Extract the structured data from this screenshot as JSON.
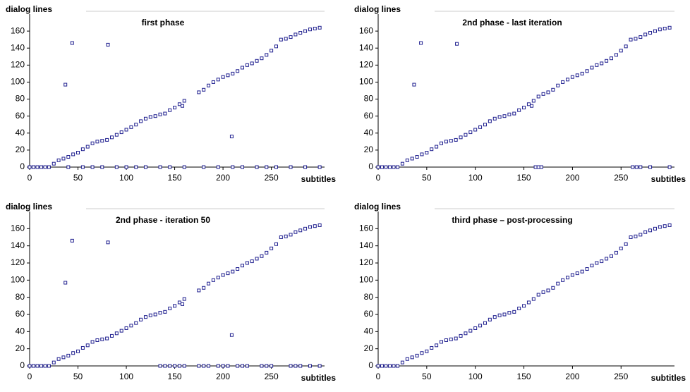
{
  "chart_data": [
    {
      "type": "scatter",
      "title": "first phase",
      "x_label": "subtitles",
      "y_label": "dialog lines",
      "color": "#1f1f8f",
      "xlim": [
        0,
        305
      ],
      "ylim": [
        0,
        180
      ],
      "xticks": [
        0,
        50,
        100,
        150,
        200,
        250
      ],
      "yticks": [
        0,
        20,
        40,
        60,
        80,
        100,
        120,
        140,
        160
      ],
      "x": [
        0,
        4,
        8,
        12,
        16,
        40,
        55,
        65,
        75,
        90,
        100,
        110,
        120,
        135,
        145,
        160,
        180,
        195,
        210,
        220,
        235,
        245,
        255,
        270,
        285,
        300,
        37,
        44,
        81,
        158,
        209,
        20,
        25,
        30,
        35,
        40,
        45,
        50,
        55,
        60,
        65,
        70,
        75,
        80,
        85,
        90,
        95,
        100,
        105,
        110,
        115,
        120,
        125,
        130,
        135,
        140,
        145,
        150,
        155,
        160,
        175,
        180,
        185,
        190,
        195,
        200,
        205,
        210,
        215,
        220,
        225,
        230,
        235,
        240,
        245,
        250,
        255,
        260,
        265,
        270,
        275,
        280,
        285,
        290,
        295,
        300
      ],
      "y": [
        0,
        0,
        0,
        0,
        0,
        0,
        0,
        0,
        0,
        0,
        0,
        0,
        0,
        0,
        0,
        0,
        0,
        0,
        0,
        0,
        0,
        0,
        0,
        0,
        0,
        0,
        97,
        146,
        144,
        72,
        36,
        0,
        4,
        8,
        10,
        12,
        15,
        17,
        21,
        24,
        28,
        30,
        31,
        32,
        35,
        38,
        41,
        44,
        47,
        50,
        54,
        57,
        59,
        60,
        62,
        63,
        67,
        70,
        74,
        78,
        88,
        91,
        96,
        100,
        103,
        106,
        108,
        110,
        113,
        117,
        120,
        122,
        125,
        128,
        132,
        137,
        142,
        150,
        151,
        153,
        156,
        158,
        160,
        162,
        163,
        164
      ]
    },
    {
      "type": "scatter",
      "title": "2nd phase - last iteration",
      "x_label": "subtitles",
      "y_label": "dialog lines",
      "color": "#1f1f8f",
      "xlim": [
        0,
        305
      ],
      "ylim": [
        0,
        180
      ],
      "xticks": [
        0,
        50,
        100,
        150,
        200,
        250
      ],
      "yticks": [
        0,
        20,
        40,
        60,
        80,
        100,
        120,
        140,
        160
      ],
      "x": [
        0,
        4,
        8,
        12,
        16,
        162,
        165,
        168,
        262,
        266,
        270,
        280,
        300,
        37,
        44,
        81,
        158,
        20,
        25,
        30,
        35,
        40,
        45,
        50,
        55,
        60,
        65,
        70,
        75,
        80,
        85,
        90,
        95,
        100,
        105,
        110,
        115,
        120,
        125,
        130,
        135,
        140,
        145,
        150,
        155,
        160,
        165,
        170,
        175,
        180,
        185,
        190,
        195,
        200,
        205,
        210,
        215,
        220,
        225,
        230,
        235,
        240,
        245,
        250,
        255,
        260,
        265,
        270,
        275,
        280,
        285,
        290,
        295,
        300
      ],
      "y": [
        0,
        0,
        0,
        0,
        0,
        0,
        0,
        0,
        0,
        0,
        0,
        0,
        0,
        97,
        146,
        145,
        72,
        0,
        4,
        8,
        10,
        12,
        15,
        17,
        21,
        24,
        28,
        30,
        31,
        32,
        35,
        38,
        41,
        44,
        47,
        50,
        54,
        57,
        59,
        60,
        62,
        63,
        67,
        70,
        74,
        78,
        83,
        86,
        88,
        91,
        96,
        100,
        103,
        106,
        108,
        110,
        113,
        117,
        120,
        122,
        125,
        128,
        132,
        137,
        142,
        150,
        151,
        153,
        156,
        158,
        160,
        162,
        163,
        164
      ]
    },
    {
      "type": "scatter",
      "title": "2nd phase - iteration 50",
      "x_label": "subtitles",
      "y_label": "dialog lines",
      "color": "#1f1f8f",
      "xlim": [
        0,
        305
      ],
      "ylim": [
        0,
        180
      ],
      "xticks": [
        0,
        50,
        100,
        150,
        200,
        250
      ],
      "yticks": [
        0,
        20,
        40,
        60,
        80,
        100,
        120,
        140,
        160
      ],
      "x": [
        0,
        4,
        8,
        12,
        16,
        135,
        140,
        145,
        150,
        155,
        160,
        175,
        180,
        185,
        195,
        200,
        205,
        215,
        220,
        225,
        240,
        245,
        250,
        270,
        275,
        280,
        290,
        300,
        37,
        44,
        81,
        158,
        209,
        20,
        25,
        30,
        35,
        40,
        45,
        50,
        55,
        60,
        65,
        70,
        75,
        80,
        85,
        90,
        95,
        100,
        105,
        110,
        115,
        120,
        125,
        130,
        135,
        140,
        145,
        150,
        155,
        160,
        175,
        180,
        185,
        190,
        195,
        200,
        205,
        210,
        215,
        220,
        225,
        230,
        235,
        240,
        245,
        250,
        255,
        260,
        265,
        270,
        275,
        280,
        285,
        290,
        295,
        300
      ],
      "y": [
        0,
        0,
        0,
        0,
        0,
        0,
        0,
        0,
        0,
        0,
        0,
        0,
        0,
        0,
        0,
        0,
        0,
        0,
        0,
        0,
        0,
        0,
        0,
        0,
        0,
        0,
        0,
        0,
        97,
        146,
        144,
        72,
        36,
        0,
        4,
        8,
        10,
        12,
        15,
        17,
        21,
        24,
        28,
        30,
        31,
        32,
        35,
        38,
        41,
        44,
        47,
        50,
        54,
        57,
        59,
        60,
        62,
        63,
        67,
        70,
        74,
        78,
        88,
        91,
        96,
        100,
        103,
        106,
        108,
        110,
        113,
        117,
        120,
        122,
        125,
        128,
        132,
        137,
        142,
        150,
        151,
        153,
        156,
        158,
        160,
        162,
        163,
        164
      ]
    },
    {
      "type": "scatter",
      "title": "third phase – post-processing",
      "x_label": "subtitles",
      "y_label": "dialog lines",
      "color": "#1f1f8f",
      "xlim": [
        0,
        305
      ],
      "ylim": [
        0,
        180
      ],
      "xticks": [
        0,
        50,
        100,
        150,
        200,
        250
      ],
      "yticks": [
        0,
        20,
        40,
        60,
        80,
        100,
        120,
        140,
        160
      ],
      "x": [
        0,
        4,
        8,
        12,
        16,
        20,
        25,
        30,
        35,
        40,
        45,
        50,
        55,
        60,
        65,
        70,
        75,
        80,
        85,
        90,
        95,
        100,
        105,
        110,
        115,
        120,
        125,
        130,
        135,
        140,
        145,
        150,
        155,
        160,
        165,
        170,
        175,
        180,
        185,
        190,
        195,
        200,
        205,
        210,
        215,
        220,
        225,
        230,
        235,
        240,
        245,
        250,
        255,
        260,
        265,
        270,
        275,
        280,
        285,
        290,
        295,
        300
      ],
      "y": [
        0,
        0,
        0,
        0,
        0,
        0,
        4,
        8,
        10,
        12,
        15,
        17,
        21,
        24,
        28,
        30,
        31,
        32,
        35,
        38,
        41,
        44,
        47,
        50,
        54,
        57,
        59,
        60,
        62,
        63,
        67,
        70,
        74,
        78,
        83,
        86,
        88,
        91,
        96,
        100,
        103,
        106,
        108,
        110,
        113,
        117,
        120,
        122,
        125,
        128,
        132,
        137,
        142,
        150,
        151,
        153,
        156,
        158,
        160,
        162,
        163,
        164
      ]
    }
  ]
}
